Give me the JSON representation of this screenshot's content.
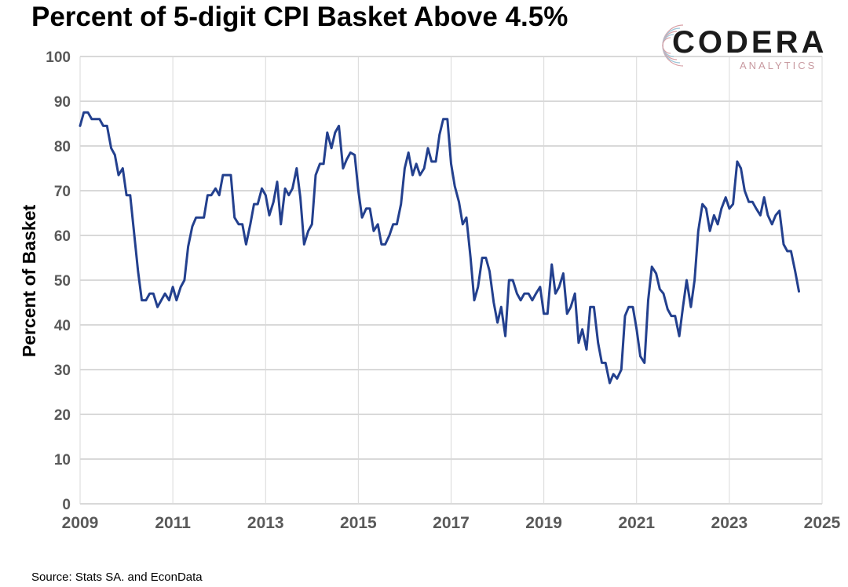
{
  "title": "Percent of 5-digit CPI Basket Above 4.5%",
  "source": "Source: Stats SA. and EconData",
  "logo": {
    "word": "CODERA",
    "sub": "ANALYTICS"
  },
  "colors": {
    "line": "#23408e",
    "grid": "#d9d9d9",
    "axis_text": "#595959"
  },
  "chart_data": {
    "type": "line",
    "title": "Percent of 5-digit CPI Basket Above 4.5%",
    "xlabel": "",
    "ylabel": "Percent of Basket",
    "xlim": [
      2009,
      2025
    ],
    "ylim": [
      0,
      100
    ],
    "x_ticks": [
      "2009",
      "2011",
      "2013",
      "2015",
      "2017",
      "2019",
      "2021",
      "2023",
      "2025"
    ],
    "y_ticks": [
      "0",
      "10",
      "20",
      "30",
      "40",
      "50",
      "60",
      "70",
      "80",
      "90",
      "100"
    ],
    "grid": {
      "horizontal": true,
      "vertical": true
    },
    "series": [
      {
        "x": [
          2009.0,
          2009.08,
          2009.17,
          2009.25,
          2009.33,
          2009.42,
          2009.5,
          2009.58,
          2009.67,
          2009.75,
          2009.83,
          2009.92,
          2010.0,
          2010.08,
          2010.17,
          2010.25,
          2010.33,
          2010.42,
          2010.5,
          2010.58,
          2010.67,
          2010.75,
          2010.83,
          2010.92,
          2011.0,
          2011.08,
          2011.17,
          2011.25,
          2011.33,
          2011.42,
          2011.5,
          2011.58,
          2011.67,
          2011.75,
          2011.83,
          2011.92,
          2012.0,
          2012.08,
          2012.17,
          2012.25,
          2012.33,
          2012.42,
          2012.5,
          2012.58,
          2012.67,
          2012.75,
          2012.83,
          2012.92,
          2013.0,
          2013.08,
          2013.17,
          2013.25,
          2013.33,
          2013.42,
          2013.5,
          2013.58,
          2013.67,
          2013.75,
          2013.83,
          2013.92,
          2014.0,
          2014.08,
          2014.17,
          2014.25,
          2014.33,
          2014.42,
          2014.5,
          2014.58,
          2014.67,
          2014.75,
          2014.83,
          2014.92,
          2015.0,
          2015.08,
          2015.17,
          2015.25,
          2015.33,
          2015.42,
          2015.5,
          2015.58,
          2015.67,
          2015.75,
          2015.83,
          2015.92,
          2016.0,
          2016.08,
          2016.17,
          2016.25,
          2016.33,
          2016.42,
          2016.5,
          2016.58,
          2016.67,
          2016.75,
          2016.83,
          2016.92,
          2017.0,
          2017.08,
          2017.17,
          2017.25,
          2017.33,
          2017.42,
          2017.5,
          2017.58,
          2017.67,
          2017.75,
          2017.83,
          2017.92,
          2018.0,
          2018.08,
          2018.17,
          2018.25,
          2018.33,
          2018.42,
          2018.5,
          2018.58,
          2018.67,
          2018.75,
          2018.83,
          2018.92,
          2019.0,
          2019.08,
          2019.17,
          2019.25,
          2019.33,
          2019.42,
          2019.5,
          2019.58,
          2019.67,
          2019.75,
          2019.83,
          2019.92,
          2020.0,
          2020.08,
          2020.17,
          2020.25,
          2020.33,
          2020.42,
          2020.5,
          2020.58,
          2020.67,
          2020.75,
          2020.83,
          2020.92,
          2021.0,
          2021.08,
          2021.17,
          2021.25,
          2021.33,
          2021.42,
          2021.5,
          2021.58,
          2021.67,
          2021.75,
          2021.83,
          2021.92,
          2022.0,
          2022.08,
          2022.17,
          2022.25,
          2022.33,
          2022.42,
          2022.5,
          2022.58,
          2022.67,
          2022.75,
          2022.83,
          2022.92,
          2023.0,
          2023.08,
          2023.17,
          2023.25,
          2023.33,
          2023.42,
          2023.5,
          2023.58,
          2023.67,
          2023.75,
          2023.83,
          2023.92,
          2024.0,
          2024.08,
          2024.17,
          2024.25,
          2024.33,
          2024.42,
          2024.5
        ],
        "y": [
          84.5,
          87.5,
          87.5,
          86.0,
          86.0,
          86.0,
          84.5,
          84.5,
          79.5,
          78.0,
          73.5,
          75.0,
          69.0,
          69.0,
          60.0,
          52.0,
          45.5,
          45.5,
          47.0,
          47.0,
          44.0,
          45.5,
          47.0,
          45.5,
          48.5,
          45.5,
          48.5,
          50.0,
          57.5,
          62.0,
          64.0,
          64.0,
          64.0,
          69.0,
          69.0,
          70.5,
          69.0,
          73.5,
          73.5,
          73.5,
          64.0,
          62.5,
          62.5,
          58.0,
          62.5,
          67.0,
          67.0,
          70.5,
          69.0,
          64.5,
          67.5,
          72.0,
          62.5,
          70.5,
          69.0,
          70.5,
          75.0,
          68.5,
          58.0,
          61.0,
          62.5,
          73.5,
          76.0,
          76.0,
          83.0,
          79.5,
          83.0,
          84.5,
          75.0,
          77.0,
          78.5,
          78.0,
          70.0,
          64.0,
          66.0,
          66.0,
          61.0,
          62.5,
          58.0,
          58.0,
          60.0,
          62.5,
          62.5,
          67.0,
          75.0,
          78.5,
          73.5,
          76.0,
          73.5,
          75.0,
          79.5,
          76.5,
          76.5,
          82.5,
          86.0,
          86.0,
          76.0,
          71.0,
          67.5,
          62.5,
          64.0,
          55.0,
          45.5,
          48.5,
          55.0,
          55.0,
          52.0,
          45.0,
          40.5,
          44.0,
          37.5,
          50.0,
          50.0,
          47.0,
          45.5,
          47.0,
          47.0,
          45.5,
          47.0,
          48.5,
          42.5,
          42.5,
          53.5,
          47.0,
          48.5,
          51.5,
          42.5,
          44.0,
          47.0,
          36.0,
          39.0,
          34.5,
          44.0,
          44.0,
          36.0,
          31.5,
          31.5,
          27.0,
          29.0,
          28.0,
          30.0,
          42.0,
          44.0,
          44.0,
          39.0,
          33.0,
          31.5,
          45.5,
          53.0,
          51.5,
          48.0,
          47.0,
          43.5,
          42.0,
          42.0,
          37.5,
          44.0,
          50.0,
          44.0,
          50.0,
          61.0,
          67.0,
          66.0,
          61.0,
          64.5,
          62.5,
          66.0,
          68.5,
          66.0,
          67.0,
          76.5,
          75.0,
          70.0,
          67.5,
          67.5,
          66.0,
          64.5,
          68.5,
          64.5,
          62.5,
          64.5,
          65.5,
          58.0,
          56.5,
          56.5,
          52.0,
          47.5
        ]
      }
    ]
  }
}
